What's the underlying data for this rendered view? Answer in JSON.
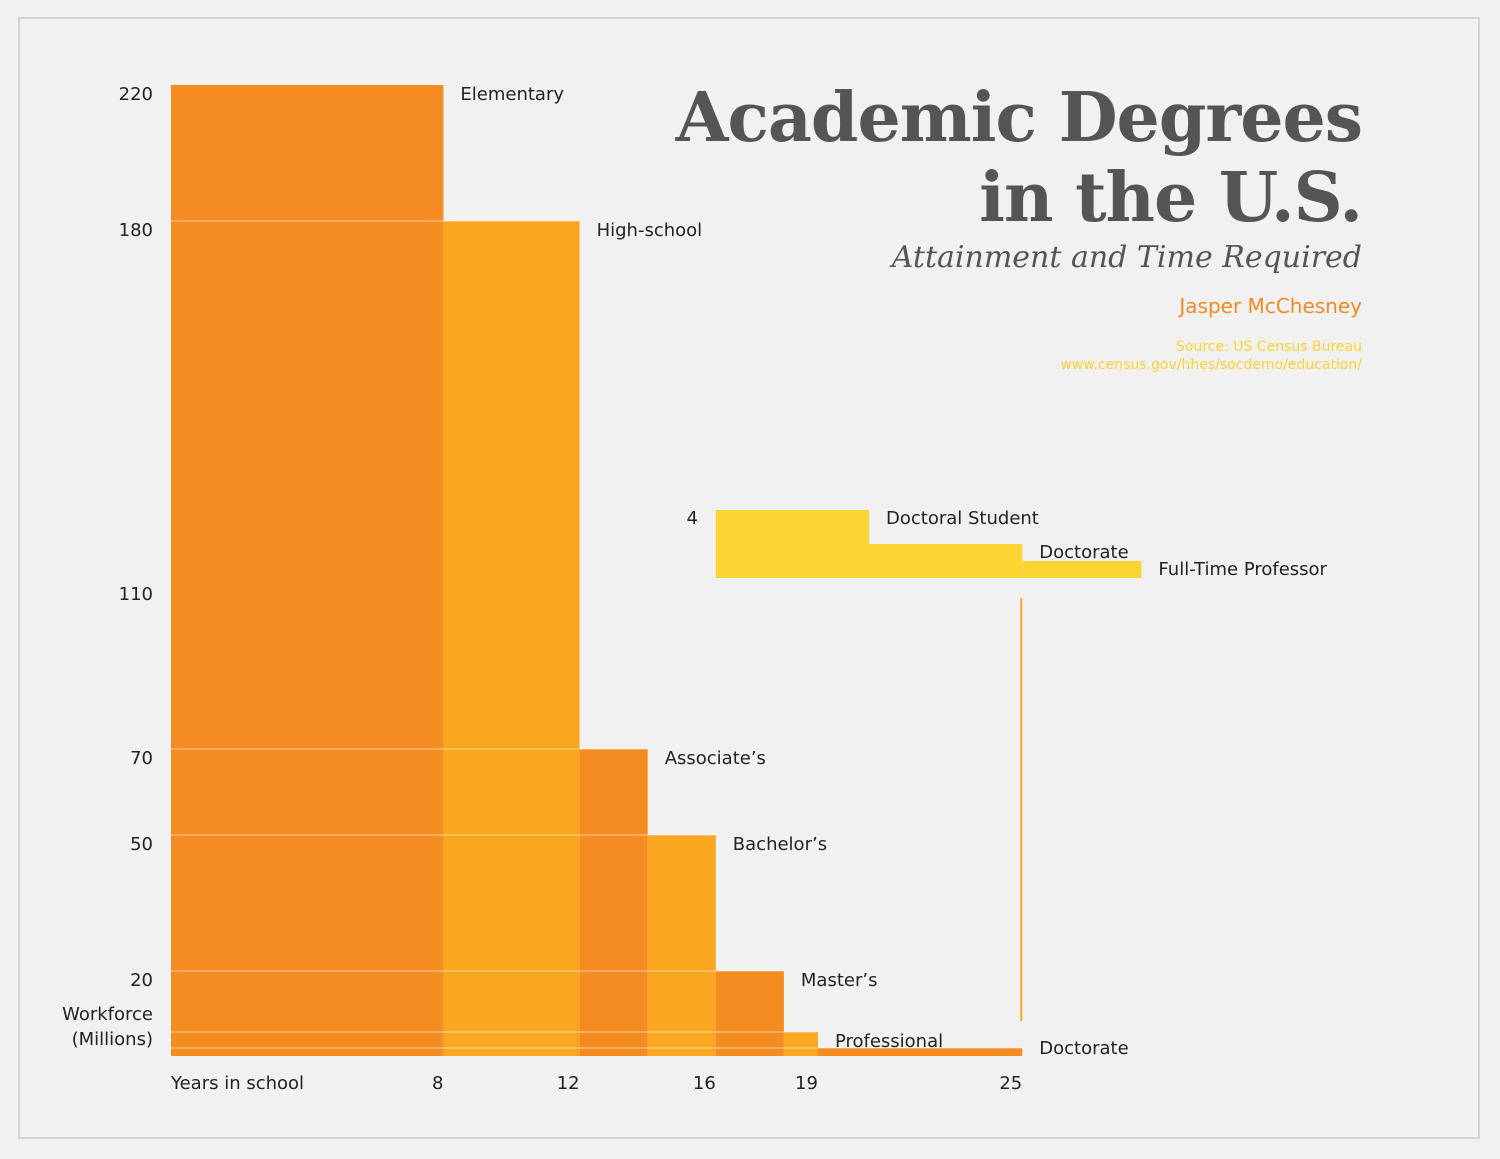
{
  "title_line1": "Academic Degrees",
  "title_line2": "in the U.S.",
  "subtitle": "Attainment and Time Required",
  "author": "Jasper McChesney",
  "source": "Source: US Census Bureau",
  "source_url": "www.census.gov/hhes/socdemo/education/",
  "colors": {
    "dark_orange": "#f58c22",
    "light_orange": "#f9a71e",
    "yellow": "#fdd533",
    "background": "#f1f1f1",
    "text": "#222222"
  },
  "chart_data": {
    "type": "bar",
    "xlabel": "Years in school",
    "ylabel": "Workforce (Millions)",
    "ylabel_lines": [
      "Workforce",
      "(Millions)"
    ],
    "x_ticks": [
      8,
      12,
      16,
      19,
      25
    ],
    "y_ticks": [
      20,
      50,
      70,
      110,
      180,
      220
    ],
    "series": [
      {
        "name": "Elementary",
        "x_start": 0,
        "x_end": 8,
        "y": 220
      },
      {
        "name": "High-school",
        "x_start": 8,
        "x_end": 12,
        "y": 180
      },
      {
        "name": "Associate’s",
        "x_start": 12,
        "x_end": 14,
        "y": 70
      },
      {
        "name": "Bachelor’s",
        "x_start": 14,
        "x_end": 16,
        "y": 50
      },
      {
        "name": "Master’s",
        "x_start": 16,
        "x_end": 18,
        "y": 20
      },
      {
        "name": "Professional",
        "x_start": 18,
        "x_end": 19,
        "y": 7
      },
      {
        "name": "Doctorate",
        "x_start": 19,
        "x_end": 25,
        "y": 3
      }
    ],
    "inset": {
      "y_tick": 4,
      "series": [
        {
          "name": "Doctoral Student",
          "x_start": 16,
          "x_end": 20.5,
          "y": 4
        },
        {
          "name": "Doctorate",
          "x_start": 20.5,
          "x_end": 25,
          "y": 2
        },
        {
          "name": "Full-Time Professor",
          "x_start": 25,
          "x_end": 28.5,
          "y": 1
        }
      ]
    }
  }
}
